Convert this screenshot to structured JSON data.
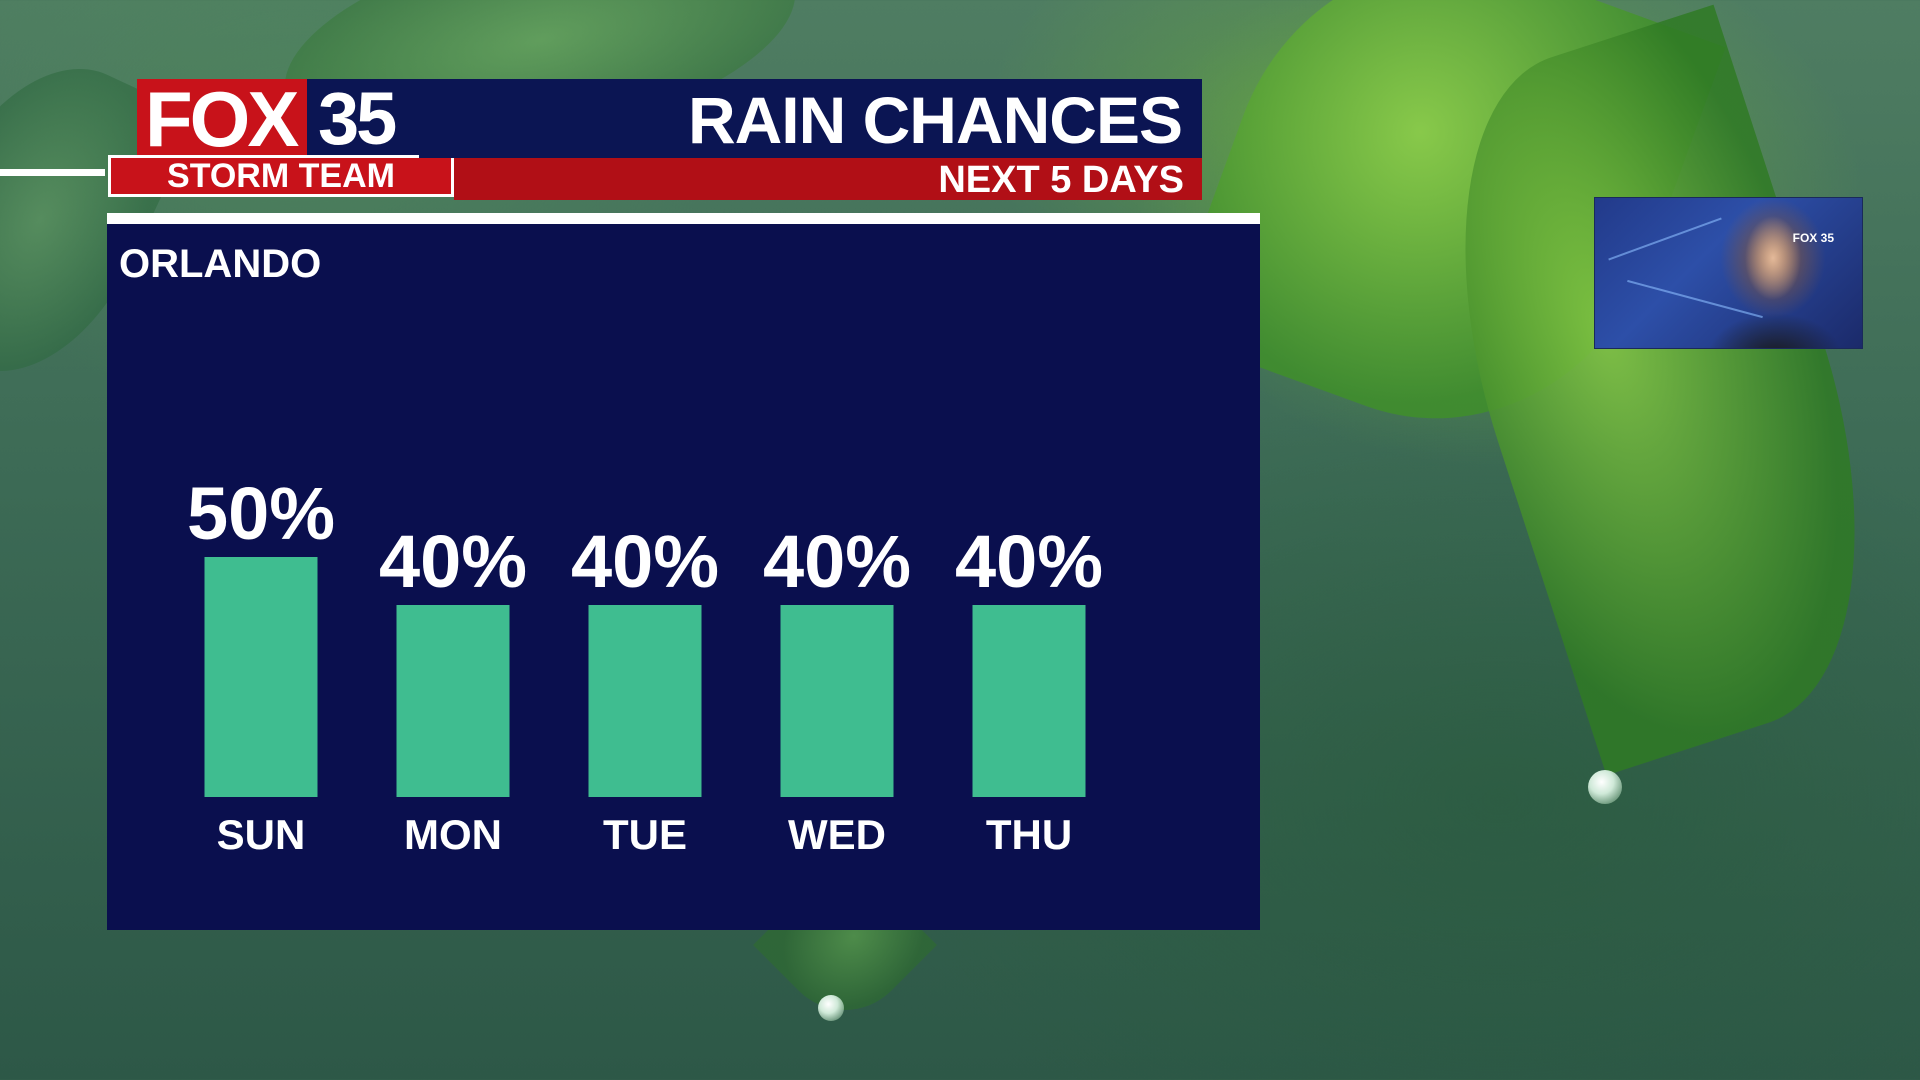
{
  "branding": {
    "network": "FOX",
    "channel": "35",
    "team": "STORM TEAM"
  },
  "header": {
    "title": "RAIN CHANCES",
    "subtitle": "NEXT 5 DAYS"
  },
  "colors": {
    "navy": "#0a0f4e",
    "red": "#c8121a",
    "bar": "#3fbd90"
  },
  "chart_data": {
    "type": "bar",
    "location": "ORLANDO",
    "categories": [
      "SUN",
      "MON",
      "TUE",
      "WED",
      "THU"
    ],
    "values": [
      50,
      40,
      40,
      40,
      40
    ],
    "value_labels": [
      "50%",
      "40%",
      "40%",
      "40%",
      "40%"
    ],
    "unit": "%",
    "grid": false
  },
  "inset_video": {
    "logo_text": "FOX 35"
  }
}
